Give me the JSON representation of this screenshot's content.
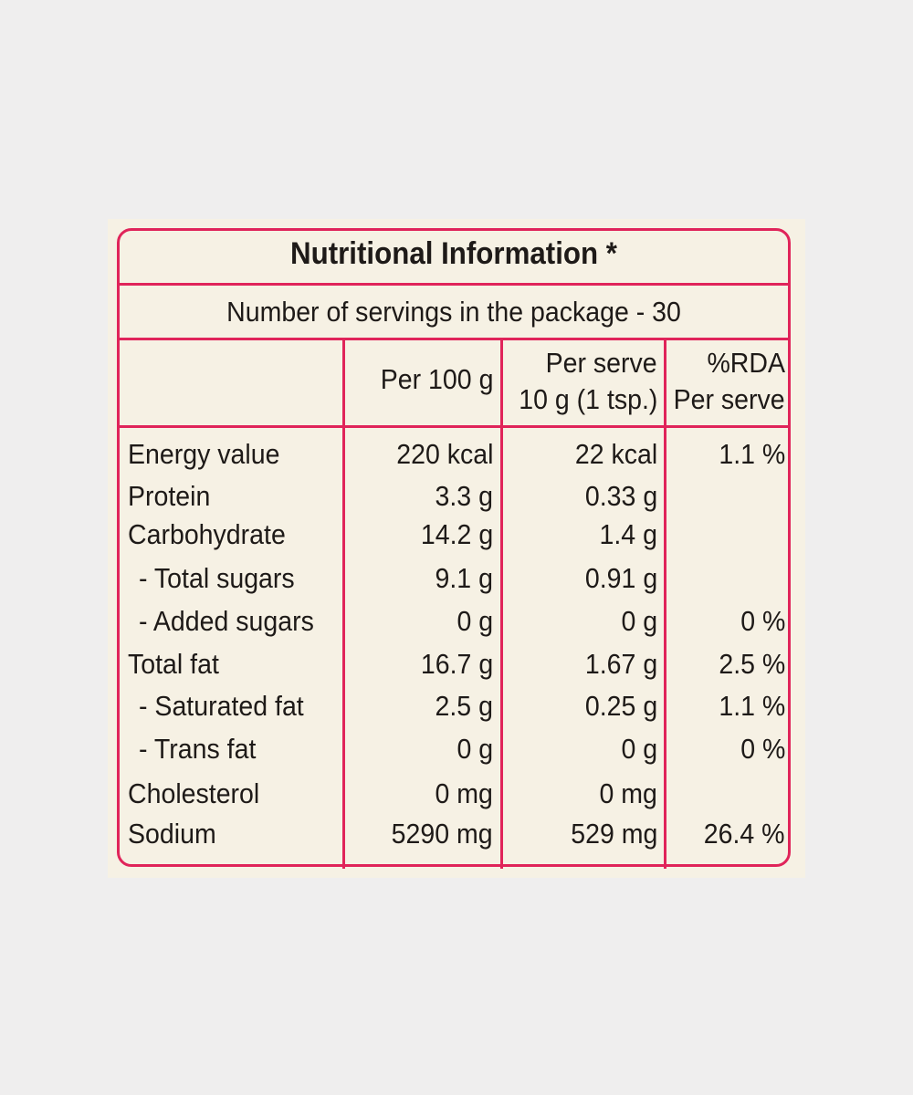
{
  "title": "Nutritional Information *",
  "servings": "Number of servings in the package - 30",
  "table": {
    "columns": [
      [
        "Per 100 g"
      ],
      [
        "Per serve",
        "10 g (1 tsp.)"
      ],
      [
        "%RDA",
        "Per serve"
      ]
    ],
    "rows": [
      {
        "label": "Energy value",
        "per_100g": "220 kcal",
        "per_serve": "22 kcal",
        "rda": "1.1 %"
      },
      {
        "label": "Protein",
        "per_100g": "3.3 g",
        "per_serve": "0.33 g"
      },
      {
        "label": "Carbohydrate",
        "per_100g": "14.2 g",
        "per_serve": "1.4 g"
      },
      {
        "label": "- Total sugars",
        "per_100g": "9.1 g",
        "per_serve": "0.91 g"
      },
      {
        "label": "- Added sugars",
        "per_100g": "0 g",
        "per_serve": "0 g",
        "rda": "0 %"
      },
      {
        "label": "Total fat",
        "per_100g": "16.7 g",
        "per_serve": "1.67 g",
        "rda": "2.5 %"
      },
      {
        "label": "- Saturated fat",
        "per_100g": "2.5 g",
        "per_serve": "0.25 g",
        "rda": "1.1 %"
      },
      {
        "label": "- Trans fat",
        "per_100g": "0 g",
        "per_serve": "0 g",
        "rda": "0 %"
      },
      {
        "label": "Cholesterol",
        "per_100g": "0 mg",
        "per_serve": "0 mg"
      },
      {
        "label": "Sodium",
        "per_100g": "5290 mg",
        "per_serve": "529 mg",
        "rda": "26.4 %"
      }
    ]
  }
}
